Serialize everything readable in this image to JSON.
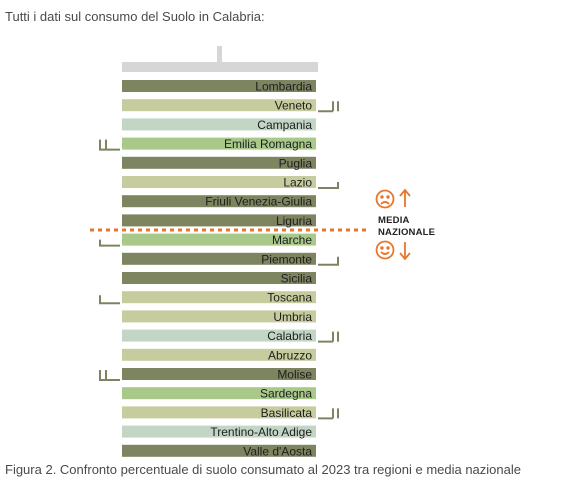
{
  "intro_text": "Tutti i dati sul consumo del Suolo in Calabria:",
  "caption": "Figura 2. Confronto percentuale di suolo consumato al 2023 tra regioni e media nazionale",
  "legend": {
    "line1": "MEDIA",
    "line2": "NAZIONALE",
    "above_icon": "sad-face-arrow-up-icon",
    "below_icon": "happy-face-arrow-down-icon",
    "accent_color": "#e8762b"
  },
  "chart_data": {
    "type": "bar",
    "title": "",
    "categories": [
      "Lombardia",
      "Veneto",
      "Campania",
      "Emilia Romagna",
      "Puglia",
      "Lazio",
      "Friuli Venezia-Giulia",
      "Liguria",
      "Marche",
      "Piemonte",
      "Sicilia",
      "Toscana",
      "Umbria",
      "Calabria",
      "Abruzzo",
      "Molise",
      "Sardegna",
      "Basilicata",
      "Trentino-Alto Adige",
      "Valle d'Aosta"
    ],
    "colors": [
      "#7d8460",
      "#c7cc9e",
      "#c3d6c6",
      "#a8c98a",
      "#7d8460",
      "#c7cc9e",
      "#7d8460",
      "#7d8460",
      "#a8c98a",
      "#7d8460",
      "#7d8460",
      "#c7cc9e",
      "#c7cc9e",
      "#c3d6c6",
      "#c7cc9e",
      "#7d8460",
      "#a8c98a",
      "#c7cc9e",
      "#c3d6c6",
      "#7d8460"
    ],
    "national_average_after": "Liguria",
    "grid": false
  }
}
